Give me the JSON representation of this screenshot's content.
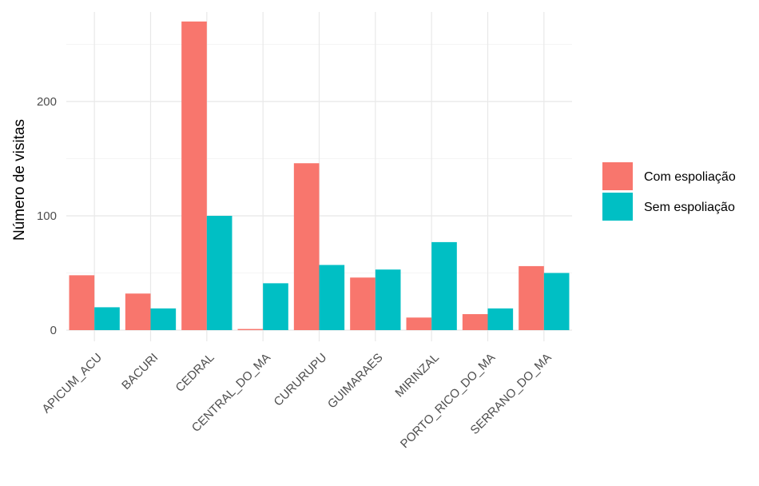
{
  "chart_data": {
    "type": "bar",
    "categories": [
      "APICUM_ACU",
      "BACURI",
      "CEDRAL",
      "CENTRAL_DO_MA",
      "CURURUPU",
      "GUIMARAES",
      "MIRINZAL",
      "PORTO_RICO_DO_MA",
      "SERRANO_DO_MA"
    ],
    "series": [
      {
        "name": "Com espoliação",
        "color": "#F8766D",
        "values": [
          48,
          32,
          270,
          1,
          146,
          46,
          11,
          14,
          56
        ]
      },
      {
        "name": "Sem espoliação",
        "color": "#00BFC4",
        "values": [
          20,
          19,
          100,
          41,
          57,
          53,
          77,
          19,
          50
        ]
      }
    ],
    "xlabel": "",
    "ylabel": "Número de visitas",
    "ylim": [
      0,
      270
    ],
    "yticks": [
      0,
      100,
      200
    ],
    "grid": true,
    "legend_position": "right"
  }
}
